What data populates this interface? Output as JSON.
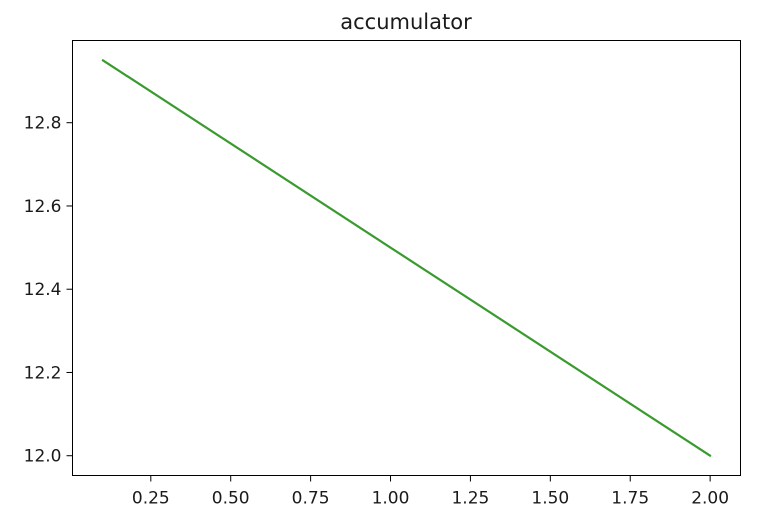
{
  "chart_data": {
    "type": "line",
    "title": "accumulator",
    "xlabel": "",
    "ylabel": "",
    "xlim": [
      0.005,
      2.095
    ],
    "ylim": [
      11.9525,
      12.9975
    ],
    "xticks": [
      0.25,
      0.5,
      0.75,
      1.0,
      1.25,
      1.5,
      1.75,
      2.0
    ],
    "xtick_labels": [
      "0.25",
      "0.50",
      "0.75",
      "1.00",
      "1.25",
      "1.50",
      "1.75",
      "2.00"
    ],
    "yticks": [
      12.0,
      12.2,
      12.4,
      12.6,
      12.8
    ],
    "ytick_labels": [
      "12.0",
      "12.2",
      "12.4",
      "12.6",
      "12.8"
    ],
    "grid": false,
    "series": [
      {
        "color": "#3a9a2e",
        "x": [
          0.1,
          2.0
        ],
        "y": [
          12.95,
          12.0
        ]
      }
    ]
  }
}
